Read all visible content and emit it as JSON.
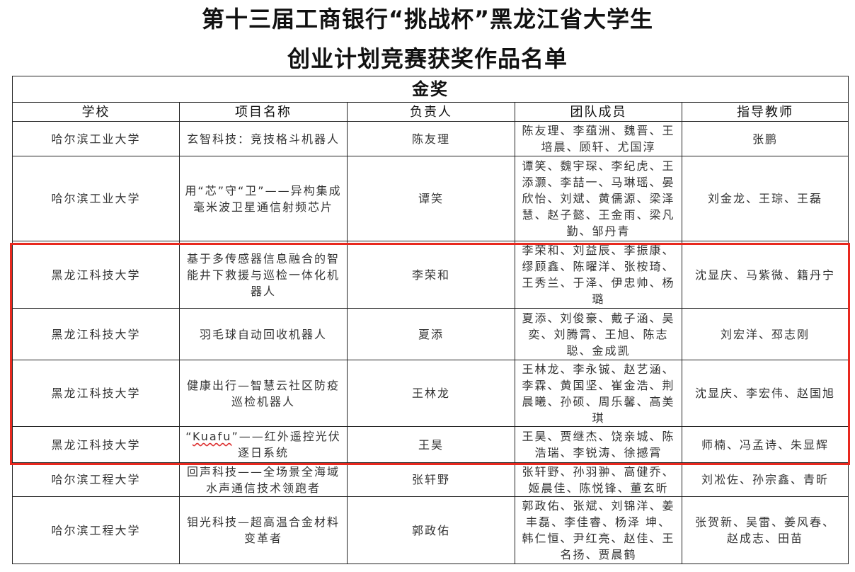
{
  "title_line1": "第十三届工商银行“挑战杯”黑龙江省大学生",
  "title_line2": "创业计划竞赛获奖作品名单",
  "award": "金奖",
  "headers": [
    "学校",
    "项目名称",
    "负责人",
    "团队成员",
    "指导教师"
  ],
  "highlight_color": "#e8281e",
  "rows": [
    {
      "school": "哈尔滨工业大学",
      "project": "玄智科技：竞技格斗机器人",
      "leader": "陈友理",
      "members": "陈友理、李蕴洲、魏晋、王培晨、顾轩、尤国淳",
      "advisors": "张鹏"
    },
    {
      "school": "哈尔滨工业大学",
      "project": "用“芯”守“卫”——异构集成毫米波卫星通信射频芯片",
      "leader": "谭笑",
      "members": "谭笑、魏宇琛、李纪虎、王添灏、李喆一、马琳瑶、晏欣怡、刘斌、黄儒源、梁泽慧、赵子懿、王金雨、梁凡勤、邹丹青",
      "advisors": "刘金龙、王琮、王磊"
    },
    {
      "school": "黑龙江科技大学",
      "project": "基于多传感器信息融合的智能井下救援与巡检一体化机器人",
      "leader": "李荣和",
      "members": "李荣和、刘益辰、李振康、缪顾鑫、陈曜洋、张桉琦、王秀兰、于泽、伊忠帅、杨璐",
      "advisors": "沈显庆、马紫微、籍丹宁"
    },
    {
      "school": "黑龙江科技大学",
      "project": "羽毛球自动回收机器人",
      "leader": "夏添",
      "members": "夏添、刘俊豪、戴子涵、吴奕、刘腾霄、王旭、陈志聪、金成凯",
      "advisors": "刘宏洋、邳志刚"
    },
    {
      "school": "黑龙江科技大学",
      "project": "健康出行—智慧云社区防疫巡检机器人",
      "leader": "王林龙",
      "members": "王林龙、李永铖、赵艺涵、李霖、黄国坚、崔金浩、荆晨曦、孙硕、周乐馨、高美琪",
      "advisors": "沈显庆、李宏伟、赵国旭"
    },
    {
      "school": "黑龙江科技大学",
      "project_prefix": "“",
      "project_word": "Kuafu",
      "project_suffix": "”——红外遥控光伏逐日系统",
      "leader": "王昊",
      "members": "王昊、贾继杰、饶亲城、陈浩瑞、李锐涛、徐撼霄",
      "advisors": "师楠、冯孟诗、朱显辉"
    },
    {
      "school": "哈尔滨工程大学",
      "project": "回声科技——全场景全海域水声通信技术领跑者",
      "leader": "张轩野",
      "members": "张轩野、孙羽翀、高健乔、姬晨佳、陈悦锋、董玄昕",
      "advisors": "刘凇佐、孙宗鑫、青昕"
    },
    {
      "school": "哈尔滨工程大学",
      "project": "钼光科技—超高温合金材料变革者",
      "leader": "郭政佑",
      "members": "郭政佑、张斌、刘锦洋、姜丰磊、李佳睿、杨泽 坤、韩仁恒、尹红亮、赵佳、王名扬、贾晨鹤",
      "advisors": "张贺新、吴雷、姜风春、 赵成志、田苗"
    }
  ]
}
